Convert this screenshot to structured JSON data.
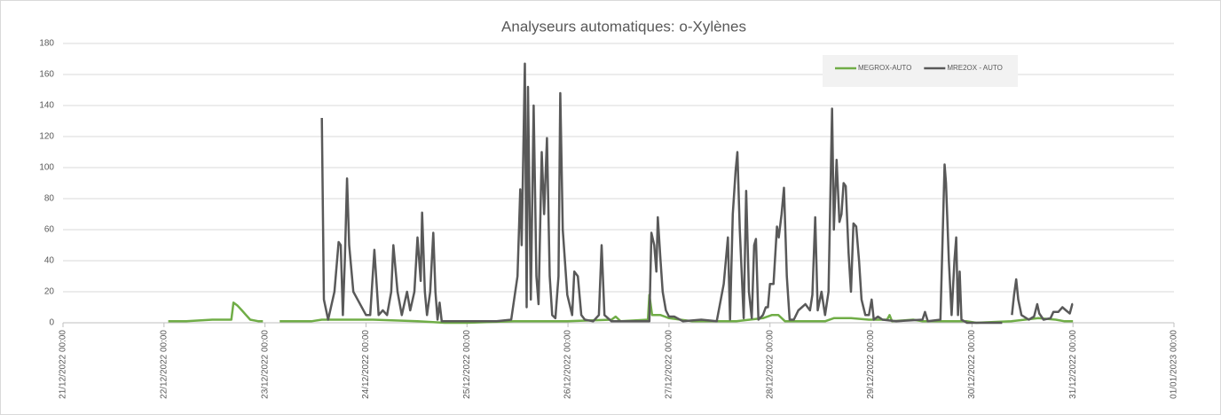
{
  "chart_data": {
    "type": "line",
    "title": "Analyseurs automatiques: o-Xylènes",
    "ylim": [
      0,
      180
    ],
    "yticks": [
      0,
      20,
      40,
      60,
      80,
      100,
      120,
      140,
      160,
      180
    ],
    "xlim": [
      "21/12/2022 00:00",
      "01/01/2023 00:00"
    ],
    "xticks": [
      "21/12/2022 00:00",
      "22/12/2022 00:00",
      "23/12/2022 00:00",
      "24/12/2022 00:00",
      "25/12/2022 00:00",
      "26/12/2022 00:00",
      "27/12/2022 00:00",
      "28/12/2022 00:00",
      "29/12/2022 00:00",
      "30/12/2022 00:00",
      "31/12/2022 00:00",
      "01/01/2023 00:00"
    ],
    "grid": true,
    "legend": "top-right",
    "series": [
      {
        "name": "MEGROX-AUTO",
        "color": "#70ad47",
        "x": [
          "22/12/2022 01:00",
          "22/12/2022 05:15",
          "22/12/2022 11:30",
          "22/12/2022 16:00",
          "22/12/2022 16:30",
          "22/12/2022 17:30",
          "22/12/2022 18:30",
          "22/12/2022 19:30",
          "22/12/2022 20:30",
          "22/12/2022 22:30",
          "22/12/2022 23:30",
          "23/12/2022 01:00",
          "23/12/2022 03:30",
          "23/12/2022 11:00",
          "23/12/2022 13:30",
          "23/12/2022 21:30",
          "24/12/2022 01:40",
          "24/12/2022 12:15",
          "24/12/2022 18:40",
          "25/12/2022 00:00",
          "25/12/2022 11:10",
          "25/12/2022 23:50",
          "26/12/2022 10:20",
          "26/12/2022 11:20",
          "26/12/2022 12:30",
          "26/12/2022 19:00",
          "26/12/2022 19:20",
          "26/12/2022 20:00",
          "26/12/2022 22:00",
          "26/12/2022 23:00",
          "27/12/2022 00:00",
          "27/12/2022 05:30",
          "27/12/2022 16:00",
          "27/12/2022 22:20",
          "28/12/2022 00:25",
          "28/12/2022 02:00",
          "28/12/2022 03:35",
          "28/12/2022 13:05",
          "28/12/2022 15:10",
          "28/12/2022 19:15",
          "28/12/2022 23:30",
          "29/12/2022 03:50",
          "29/12/2022 04:25",
          "29/12/2022 05:00",
          "29/12/2022 10:00",
          "29/12/2022 12:15",
          "29/12/2022 22:50",
          "30/12/2022 01:00",
          "30/12/2022 09:20",
          "30/12/2022 15:45",
          "30/12/2022 19:55",
          "30/12/2022 22:00",
          "31/12/2022 00:00"
        ],
        "values": [
          1,
          1,
          2,
          2,
          13,
          11,
          8,
          5,
          2,
          1,
          1,
          null,
          1,
          1,
          2,
          2,
          2,
          1,
          0,
          0,
          1,
          1,
          2,
          4,
          1,
          2,
          18,
          5,
          5,
          4,
          3,
          1,
          1,
          3,
          5,
          5,
          1,
          1,
          3,
          3,
          2,
          2,
          5,
          1,
          2,
          1,
          1,
          0,
          1,
          3,
          2,
          1,
          1
        ]
      },
      {
        "name": "MRE2OX - AUTO",
        "color": "#595959",
        "x": [
          "23/12/2022 13:30",
          "23/12/2022 14:00",
          "23/12/2022 15:00",
          "23/12/2022 16:30",
          "23/12/2022 17:30",
          "23/12/2022 18:00",
          "23/12/2022 18:30",
          "23/12/2022 19:00",
          "23/12/2022 19:30",
          "23/12/2022 20:00",
          "23/12/2022 21:00",
          "23/12/2022 22:00",
          "24/12/2022 00:00",
          "24/12/2022 01:00",
          "24/12/2022 02:00",
          "24/12/2022 03:00",
          "24/12/2022 04:00",
          "24/12/2022 05:00",
          "24/12/2022 06:00",
          "24/12/2022 06:30",
          "24/12/2022 07:30",
          "24/12/2022 08:30",
          "24/12/2022 09:45",
          "24/12/2022 10:30",
          "24/12/2022 11:30",
          "24/12/2022 12:15",
          "24/12/2022 13:00",
          "24/12/2022 13:20",
          "24/12/2022 14:00",
          "24/12/2022 14:30",
          "24/12/2022 15:15",
          "24/12/2022 16:00",
          "24/12/2022 16:30",
          "24/12/2022 17:00",
          "24/12/2022 17:30",
          "24/12/2022 18:00",
          "25/12/2022 00:00",
          "25/12/2022 07:00",
          "25/12/2022 10:30",
          "25/12/2022 12:00",
          "25/12/2022 12:40",
          "25/12/2022 13:00",
          "25/12/2022 13:45",
          "25/12/2022 14:10",
          "25/12/2022 14:30",
          "25/12/2022 15:10",
          "25/12/2022 15:50",
          "25/12/2022 16:30",
          "25/12/2022 17:00",
          "25/12/2022 17:45",
          "25/12/2022 18:20",
          "25/12/2022 19:00",
          "25/12/2022 19:40",
          "25/12/2022 20:15",
          "25/12/2022 21:00",
          "25/12/2022 21:45",
          "25/12/2022 22:10",
          "25/12/2022 22:45",
          "25/12/2022 23:50",
          "26/12/2022 01:00",
          "26/12/2022 01:30",
          "26/12/2022 02:20",
          "26/12/2022 03:10",
          "26/12/2022 04:00",
          "26/12/2022 06:00",
          "26/12/2022 07:20",
          "26/12/2022 08:00",
          "26/12/2022 08:40",
          "26/12/2022 10:20",
          "26/12/2022 19:20",
          "26/12/2022 19:50",
          "26/12/2022 20:30",
          "26/12/2022 21:00",
          "26/12/2022 21:20",
          "26/12/2022 22:00",
          "26/12/2022 22:30",
          "26/12/2022 23:15",
          "27/12/2022 00:00",
          "27/12/2022 01:15",
          "27/12/2022 03:20",
          "27/12/2022 07:40",
          "27/12/2022 11:20",
          "27/12/2022 13:00",
          "27/12/2022 14:00",
          "27/12/2022 14:30",
          "27/12/2022 15:10",
          "27/12/2022 15:50",
          "27/12/2022 16:15",
          "27/12/2022 16:50",
          "27/12/2022 17:45",
          "27/12/2022 18:20",
          "27/12/2022 19:00",
          "27/12/2022 19:40",
          "27/12/2022 20:15",
          "27/12/2022 20:40",
          "27/12/2022 21:15",
          "27/12/2022 22:20",
          "27/12/2022 23:00",
          "27/12/2022 23:30",
          "28/12/2022 00:00",
          "28/12/2022 00:50",
          "28/12/2022 01:40",
          "28/12/2022 02:05",
          "28/12/2022 02:45",
          "28/12/2022 03:20",
          "28/12/2022 04:00",
          "28/12/2022 04:40",
          "28/12/2022 05:40",
          "28/12/2022 06:45",
          "28/12/2022 07:35",
          "28/12/2022 08:25",
          "28/12/2022 09:30",
          "28/12/2022 10:05",
          "28/12/2022 10:45",
          "28/12/2022 11:20",
          "28/12/2022 12:15",
          "28/12/2022 13:05",
          "28/12/2022 13:55",
          "28/12/2022 14:45",
          "28/12/2022 15:10",
          "28/12/2022 15:50",
          "28/12/2022 16:30",
          "28/12/2022 17:00",
          "28/12/2022 17:30",
          "28/12/2022 18:00",
          "28/12/2022 18:40",
          "28/12/2022 19:15",
          "28/12/2022 19:50",
          "28/12/2022 20:30",
          "28/12/2022 21:10",
          "28/12/2022 21:45",
          "28/12/2022 22:40",
          "28/12/2022 23:30",
          "29/12/2022 00:10",
          "29/12/2022 00:40",
          "29/12/2022 01:40",
          "29/12/2022 02:45",
          "29/12/2022 06:00",
          "29/12/2022 12:15",
          "29/12/2022 12:50",
          "29/12/2022 13:30",
          "29/12/2022 16:30",
          "29/12/2022 17:30",
          "29/12/2022 17:50",
          "29/12/2022 18:30",
          "29/12/2022 19:10",
          "29/12/2022 19:50",
          "29/12/2022 20:15",
          "29/12/2022 20:40",
          "29/12/2022 21:05",
          "29/12/2022 21:30",
          "29/12/2022 22:50",
          "30/12/2022 00:00",
          "30/12/2022 07:10",
          "30/12/2022 08:20",
          "30/12/2022 09:30",
          "30/12/2022 10:00",
          "30/12/2022 10:30",
          "30/12/2022 11:00",
          "30/12/2022 11:45",
          "30/12/2022 13:30",
          "30/12/2022 14:45",
          "30/12/2022 15:30",
          "30/12/2022 16:00",
          "30/12/2022 17:00",
          "30/12/2022 18:40",
          "30/12/2022 19:20",
          "30/12/2022 20:30",
          "30/12/2022 21:30",
          "30/12/2022 22:20",
          "30/12/2022 23:15",
          "30/12/2022 23:50",
          "31/12/2022 00:00"
        ],
        "values": [
          132,
          15,
          2,
          20,
          52,
          50,
          5,
          42,
          93,
          50,
          20,
          15,
          5,
          5,
          47,
          5,
          8,
          5,
          20,
          50,
          20,
          5,
          20,
          8,
          20,
          55,
          27,
          71,
          20,
          5,
          20,
          58,
          20,
          2,
          13,
          1,
          1,
          1,
          2,
          30,
          86,
          50,
          167,
          10,
          152,
          15,
          140,
          30,
          12,
          110,
          70,
          119,
          30,
          5,
          3,
          30,
          148,
          60,
          18,
          5,
          33,
          30,
          5,
          2,
          1,
          5,
          50,
          5,
          1,
          1,
          58,
          50,
          33,
          68,
          40,
          20,
          8,
          4,
          4,
          1,
          2,
          1,
          25,
          55,
          2,
          70,
          98,
          110,
          60,
          3,
          85,
          20,
          3,
          50,
          54,
          2,
          5,
          10,
          10,
          25,
          25,
          62,
          55,
          70,
          87,
          30,
          2,
          2,
          8,
          10,
          12,
          8,
          18,
          68,
          8,
          20,
          5,
          20,
          138,
          60,
          105,
          65,
          70,
          90,
          88,
          45,
          20,
          64,
          62,
          40,
          15,
          5,
          5,
          15,
          2,
          4,
          2,
          1,
          2,
          7,
          1,
          2,
          102,
          90,
          40,
          5,
          40,
          55,
          5,
          33,
          2,
          0,
          0,
          0,
          null,
          5,
          18,
          28,
          15,
          5,
          2,
          4,
          12,
          6,
          2,
          3,
          7,
          7,
          10,
          8,
          6,
          12,
          12
        ]
      }
    ]
  }
}
